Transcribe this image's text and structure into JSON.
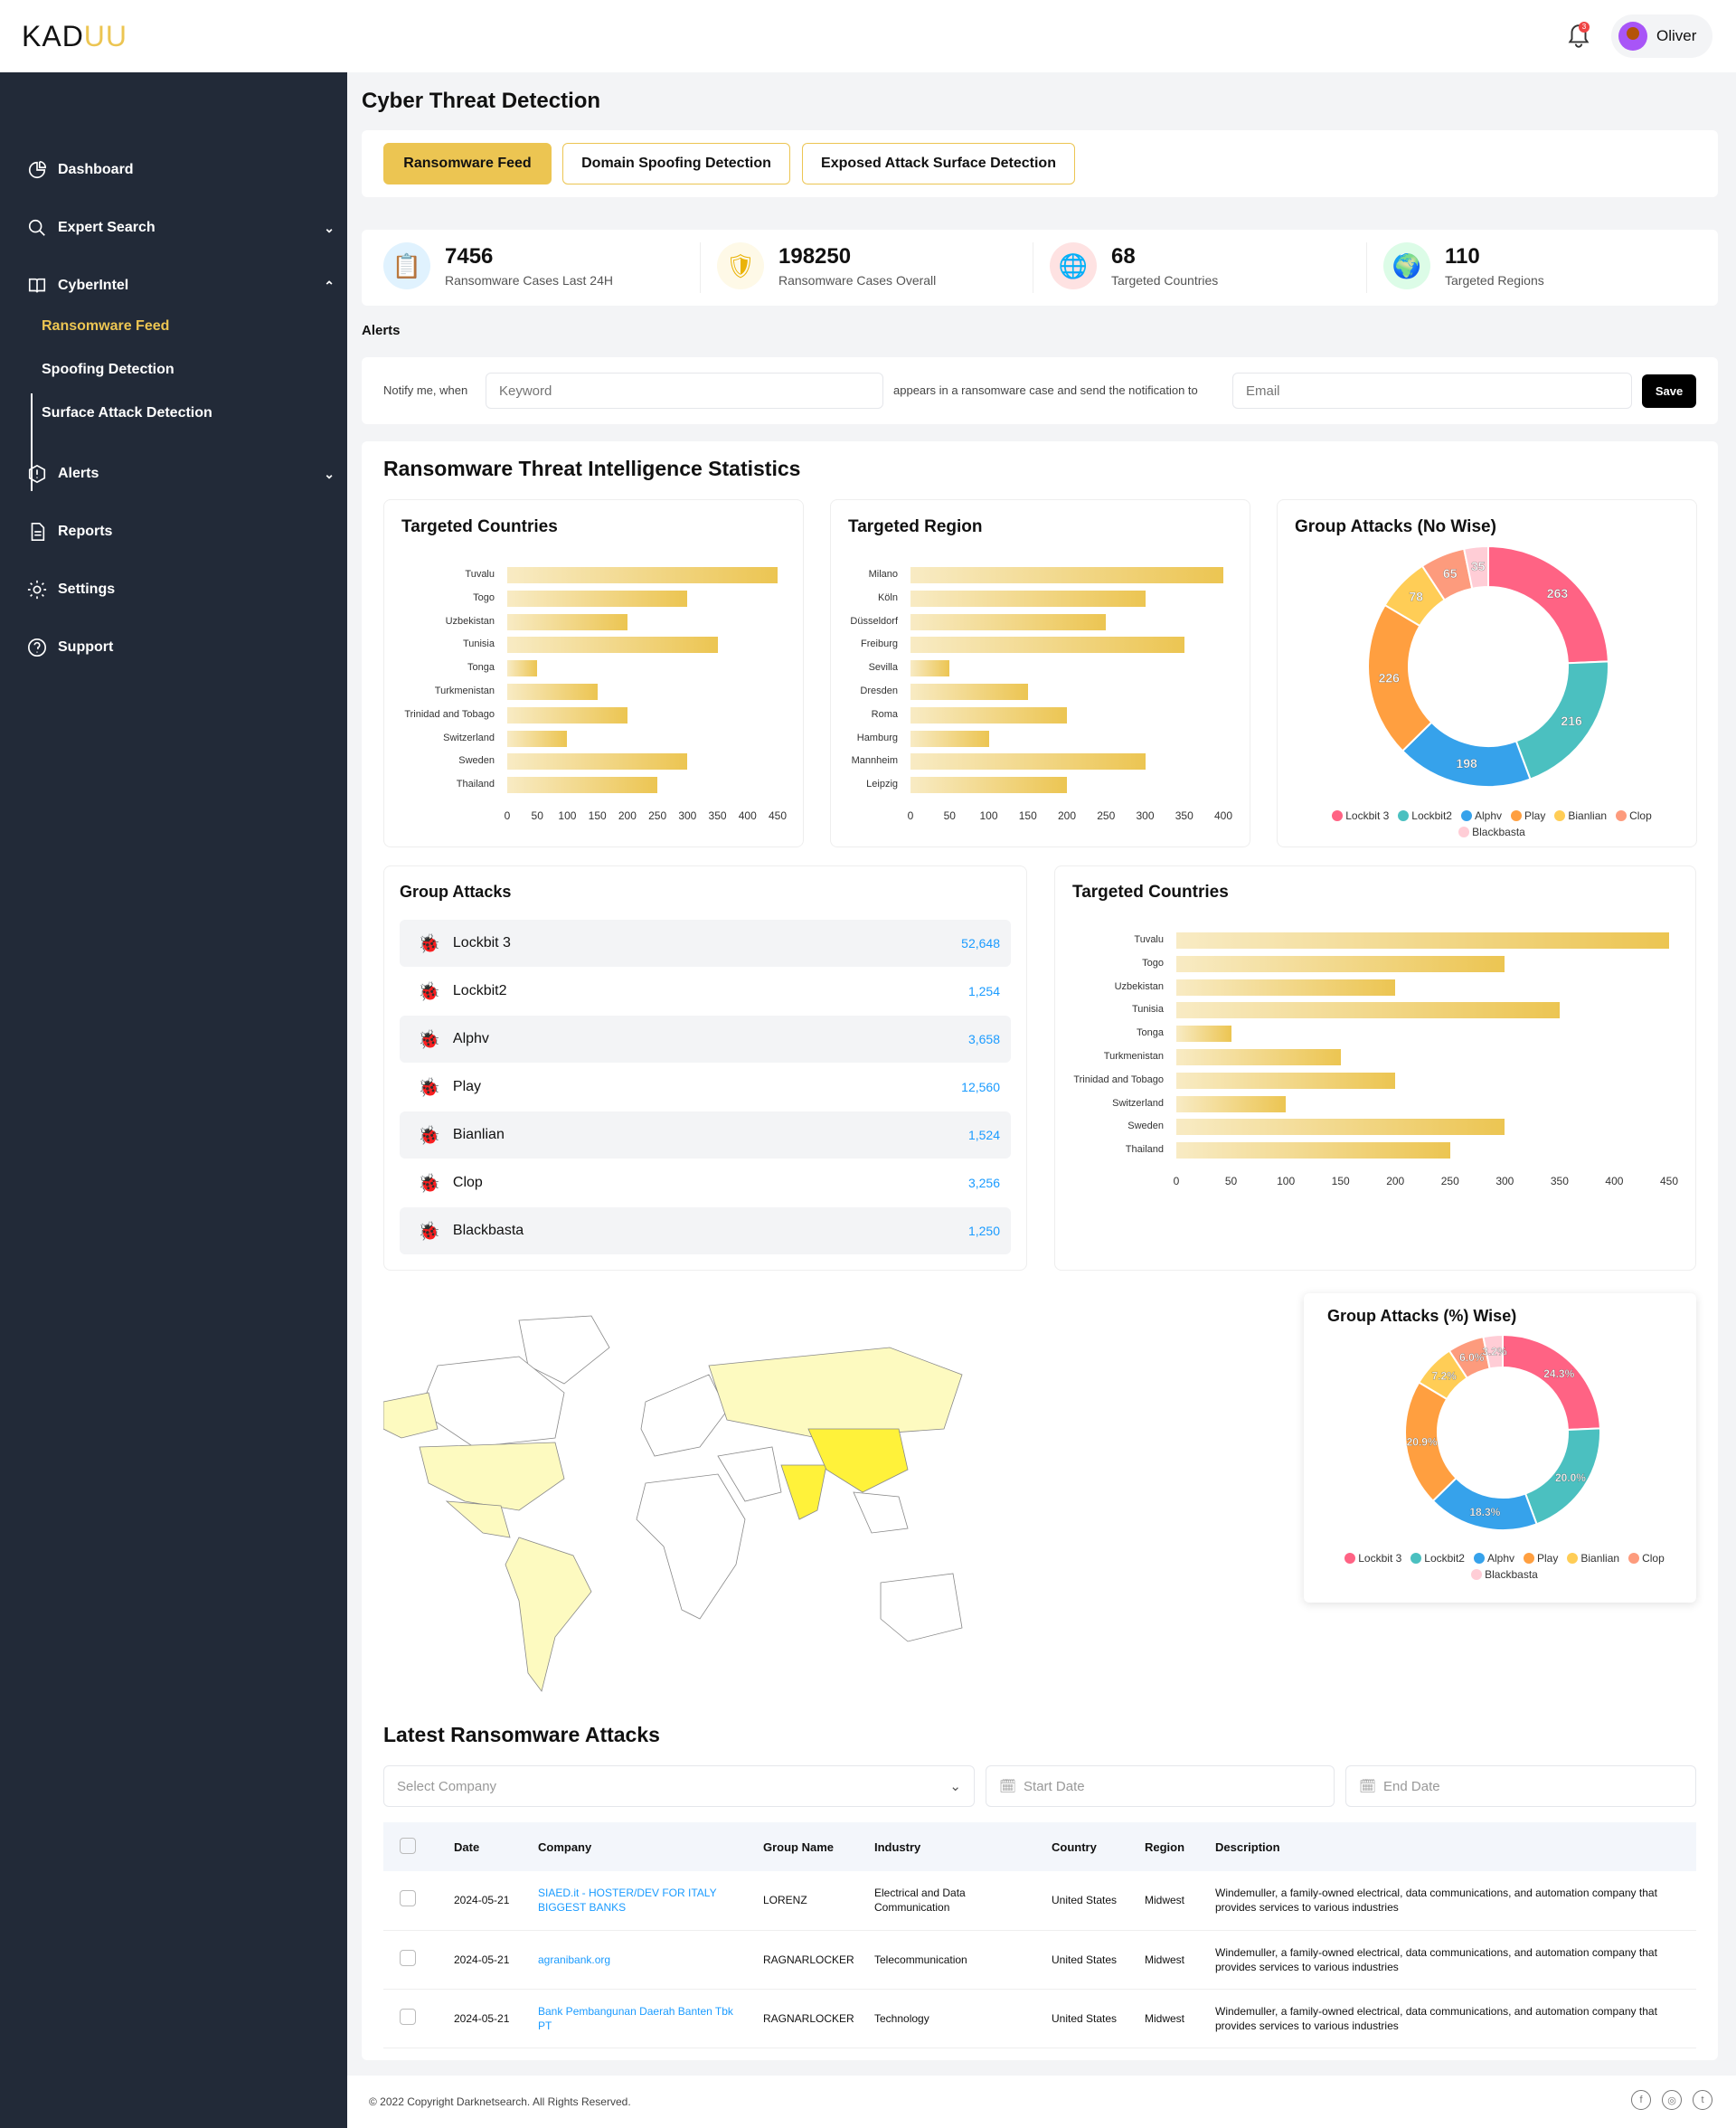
{
  "app": {
    "logo_a": "KAD",
    "logo_b": "UU",
    "user": "Oliver",
    "notifications": "3"
  },
  "sidebar": {
    "items": [
      {
        "label": "Dashboard",
        "icon": "dashboard-icon"
      },
      {
        "label": "Expert Search",
        "icon": "search-icon",
        "chevron": "down"
      },
      {
        "label": "CyberIntel",
        "icon": "book-icon",
        "chevron": "up"
      },
      {
        "label": "Alerts",
        "icon": "alert-icon",
        "chevron": "down"
      },
      {
        "label": "Reports",
        "icon": "report-icon"
      },
      {
        "label": "Settings",
        "icon": "gear-icon"
      },
      {
        "label": "Support",
        "icon": "help-icon"
      }
    ],
    "subitems": [
      {
        "label": "Ransomware Feed",
        "active": true
      },
      {
        "label": "Spoofing Detection"
      },
      {
        "label": "Surface Attack Detection"
      }
    ]
  },
  "page": {
    "title": "Cyber Threat Detection",
    "tabs": [
      "Ransomware Feed",
      "Domain Spoofing Detection",
      "Exposed Attack Surface Detection"
    ]
  },
  "stats": [
    {
      "value": "7456",
      "label": "Ransomware Cases Last 24H",
      "color": "#0ea5e9"
    },
    {
      "value": "198250",
      "label": "Ransomware Cases Overall",
      "color": "#eab308"
    },
    {
      "value": "68",
      "label": "Targeted Countries",
      "color": "#ef4444"
    },
    {
      "value": "110",
      "label": "Targeted Regions",
      "color": "#22c55e"
    }
  ],
  "alerts": {
    "title": "Alerts",
    "prefix": "Notify me, when",
    "keyword_placeholder": "Keyword",
    "middle": "appears in a ransomware case and send the notification to",
    "email_placeholder": "Email",
    "save": "Save"
  },
  "stats_section": {
    "title": "Ransomware Threat Intelligence Statistics"
  },
  "chart_data": [
    {
      "type": "bar",
      "orientation": "horizontal",
      "title": "Targeted Countries",
      "categories": [
        "Tuvalu",
        "Togo",
        "Uzbekistan",
        "Tunisia",
        "Tonga",
        "Turkmenistan",
        "Trinidad and Tobago",
        "Switzerland",
        "Sweden",
        "Thailand"
      ],
      "values": [
        450,
        300,
        200,
        350,
        50,
        150,
        200,
        100,
        300,
        250
      ],
      "xlim": [
        0,
        450
      ],
      "ticks": [
        0,
        50,
        100,
        150,
        200,
        250,
        300,
        350,
        400,
        450
      ]
    },
    {
      "type": "bar",
      "orientation": "horizontal",
      "title": "Targeted Region",
      "categories": [
        "Milano",
        "Köln",
        "Düsseldorf",
        "Freiburg",
        "Sevilla",
        "Dresden",
        "Roma",
        "Hamburg",
        "Mannheim",
        "Leipzig"
      ],
      "values": [
        400,
        300,
        250,
        350,
        50,
        150,
        200,
        100,
        300,
        200
      ],
      "xlim": [
        0,
        400
      ],
      "ticks": [
        0,
        50,
        100,
        150,
        200,
        250,
        300,
        350,
        400
      ]
    },
    {
      "type": "pie",
      "donut": true,
      "title": "Group Attacks (No Wise)",
      "categories": [
        "Lockbit 3",
        "Lockbit2",
        "Alphv",
        "Play",
        "Bianlian",
        "Clop",
        "Blackbasta"
      ],
      "values": [
        263,
        216,
        198,
        226,
        78,
        65,
        35
      ],
      "labels": [
        "263",
        "216",
        "198",
        "226",
        "78",
        "65",
        "35"
      ],
      "colors": [
        "#ff6384",
        "#4bc0c0",
        "#36a2eb",
        "#ff9f40",
        "#ffcd56",
        "#fd9b7d",
        "#ffcdd6"
      ],
      "legend": "bottom"
    },
    {
      "type": "bar",
      "orientation": "horizontal",
      "title": "Targeted Countries",
      "categories": [
        "Tuvalu",
        "Togo",
        "Uzbekistan",
        "Tunisia",
        "Tonga",
        "Turkmenistan",
        "Trinidad and Tobago",
        "Switzerland",
        "Sweden",
        "Thailand"
      ],
      "values": [
        450,
        300,
        200,
        350,
        50,
        150,
        200,
        100,
        300,
        250
      ],
      "xlim": [
        0,
        450
      ],
      "ticks": [
        0,
        50,
        100,
        150,
        200,
        250,
        300,
        350,
        400,
        450
      ]
    },
    {
      "type": "pie",
      "donut": true,
      "title": "Group Attacks (%) Wise)",
      "categories": [
        "Lockbit 3",
        "Lockbit2",
        "Alphv",
        "Play",
        "Bianlian",
        "Clop",
        "Blackbasta"
      ],
      "values": [
        24.3,
        20.0,
        18.3,
        20.9,
        7.2,
        6.0,
        3.2
      ],
      "labels": [
        "24.3%",
        "20.0%",
        "18.3%",
        "20.9%",
        "7.2%",
        "6.0%",
        "3.2%"
      ],
      "colors": [
        "#ff6384",
        "#4bc0c0",
        "#36a2eb",
        "#ff9f40",
        "#ffcd56",
        "#fd9b7d",
        "#ffcdd6"
      ],
      "legend": "bottom"
    }
  ],
  "group_attacks": {
    "title": "Group Attacks",
    "items": [
      {
        "name": "Lockbit 3",
        "value": "52,648"
      },
      {
        "name": "Lockbit2",
        "value": "1,254"
      },
      {
        "name": "Alphv",
        "value": "3,658"
      },
      {
        "name": "Play",
        "value": "12,560"
      },
      {
        "name": "Bianlian",
        "value": "1,524"
      },
      {
        "name": "Clop",
        "value": "3,256"
      },
      {
        "name": "Blackbasta",
        "value": "1,250"
      }
    ]
  },
  "latest": {
    "title": "Latest Ransomware Attacks",
    "select_placeholder": "Select Company",
    "start_placeholder": "Start Date",
    "end_placeholder": "End Date",
    "columns": [
      "Date",
      "Company",
      "Group Name",
      "Industry",
      "Country",
      "Region",
      "Description"
    ],
    "rows": [
      [
        "2024-05-21",
        "SIAED.it - HOSTER/DEV FOR ITALY BIGGEST BANKS",
        "LORENZ",
        "Electrical and Data Communication",
        "United States",
        "Midwest",
        "Windemuller, a family-owned electrical, data communications, and automation company that provides services to various industries"
      ],
      [
        "2024-05-21",
        "agranibank.org",
        "RAGNARLOCKER",
        "Telecommunication",
        "United States",
        "Midwest",
        "Windemuller, a family-owned electrical, data communications, and automation company that provides services to various industries"
      ],
      [
        "2024-05-21",
        "Bank Pembangunan Daerah Banten Tbk PT",
        "RAGNARLOCKER",
        "Technology",
        "United States",
        "Midwest",
        "Windemuller, a family-owned electrical, data communications, and automation company that provides services to various industries"
      ]
    ]
  },
  "footer": {
    "copyright": "© 2022 Copyright Darknetsearch. All Rights Reserved.",
    "social": [
      "facebook-icon",
      "instagram-icon",
      "twitter-icon"
    ]
  }
}
